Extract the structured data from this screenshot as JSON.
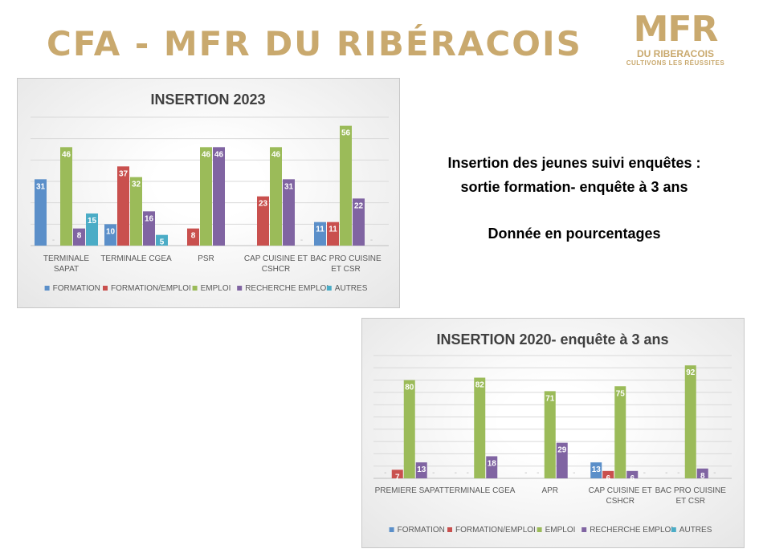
{
  "page": {
    "title": "CFA - MFR DU RIBÉRACOIS",
    "logo": {
      "mark": "MFR",
      "name": "DU RIBERACOIS",
      "tagline": "CULTIVONS LES RÉUSSITES"
    },
    "description": {
      "line1": "Insertion des jeunes suivi enquêtes :",
      "line2": "sortie formation- enquête à 3 ans",
      "line3": "Donnée en pourcentages"
    }
  },
  "colors": {
    "FORMATION": "#5b8fc9",
    "FORMATION/EMPLOI": "#c9504e",
    "EMPLOI": "#9bbb59",
    "RECHERCHE EMPLOI": "#8064a2",
    "AUTRES": "#4bacc6"
  },
  "chart_data": [
    {
      "type": "bar",
      "title": "INSERTION 2023",
      "categories": [
        [
          "TERMINALE",
          "SAPAT"
        ],
        [
          "TERMINALE CGEA"
        ],
        [
          "PSR"
        ],
        [
          "CAP CUISINE ET",
          "CSHCR"
        ],
        [
          "BAC PRO CUISINE",
          "ET CSR"
        ]
      ],
      "series": [
        {
          "name": "FORMATION",
          "values": [
            31,
            10,
            null,
            null,
            11
          ],
          "labels": [
            "31",
            "10",
            "",
            "",
            "11"
          ]
        },
        {
          "name": "FORMATION/EMPLOI",
          "values": [
            0,
            37,
            8,
            23,
            11
          ],
          "labels": [
            "-",
            "37",
            "8",
            "23",
            "11"
          ]
        },
        {
          "name": "EMPLOI",
          "values": [
            46,
            32,
            46,
            46,
            56
          ],
          "labels": [
            "46",
            "32",
            "46",
            "46",
            "56"
          ]
        },
        {
          "name": "RECHERCHE EMPLOI",
          "values": [
            8,
            16,
            46,
            31,
            22
          ],
          "labels": [
            "8",
            "16",
            "46",
            "31",
            "22"
          ]
        },
        {
          "name": "AUTRES",
          "values": [
            15,
            5,
            null,
            0,
            0
          ],
          "labels": [
            "15",
            "5",
            "",
            "-",
            "-"
          ]
        }
      ],
      "ylim": [
        0,
        60
      ],
      "grid": true,
      "legend": "bottom"
    },
    {
      "type": "bar",
      "title": "INSERTION 2020- enquête à 3 ans",
      "categories": [
        [
          "PREMIERE SAPAT"
        ],
        [
          "TERMINALE CGEA"
        ],
        [
          "APR"
        ],
        [
          "CAP CUISINE ET",
          "CSHCR"
        ],
        [
          "BAC PRO CUISINE",
          "ET CSR"
        ]
      ],
      "series": [
        {
          "name": "FORMATION",
          "values": [
            0,
            0,
            0,
            13,
            0
          ],
          "labels": [
            "-",
            "-",
            "-",
            "13",
            "-"
          ]
        },
        {
          "name": "FORMATION/EMPLOI",
          "values": [
            7,
            0,
            0,
            6,
            0
          ],
          "labels": [
            "7",
            "-",
            "-",
            "6",
            "-"
          ]
        },
        {
          "name": "EMPLOI",
          "values": [
            80,
            82,
            71,
            75,
            92
          ],
          "labels": [
            "80",
            "82",
            "71",
            "75",
            "92"
          ]
        },
        {
          "name": "RECHERCHE EMPLOI",
          "values": [
            13,
            18,
            29,
            6,
            8
          ],
          "labels": [
            "13",
            "18",
            "29",
            "6",
            "8"
          ]
        },
        {
          "name": "AUTRES",
          "values": [
            0,
            null,
            0,
            0,
            0
          ],
          "labels": [
            "-",
            "",
            "-",
            "-",
            "-"
          ]
        }
      ],
      "ylim": [
        0,
        100
      ],
      "grid": true,
      "legend": "bottom"
    }
  ]
}
